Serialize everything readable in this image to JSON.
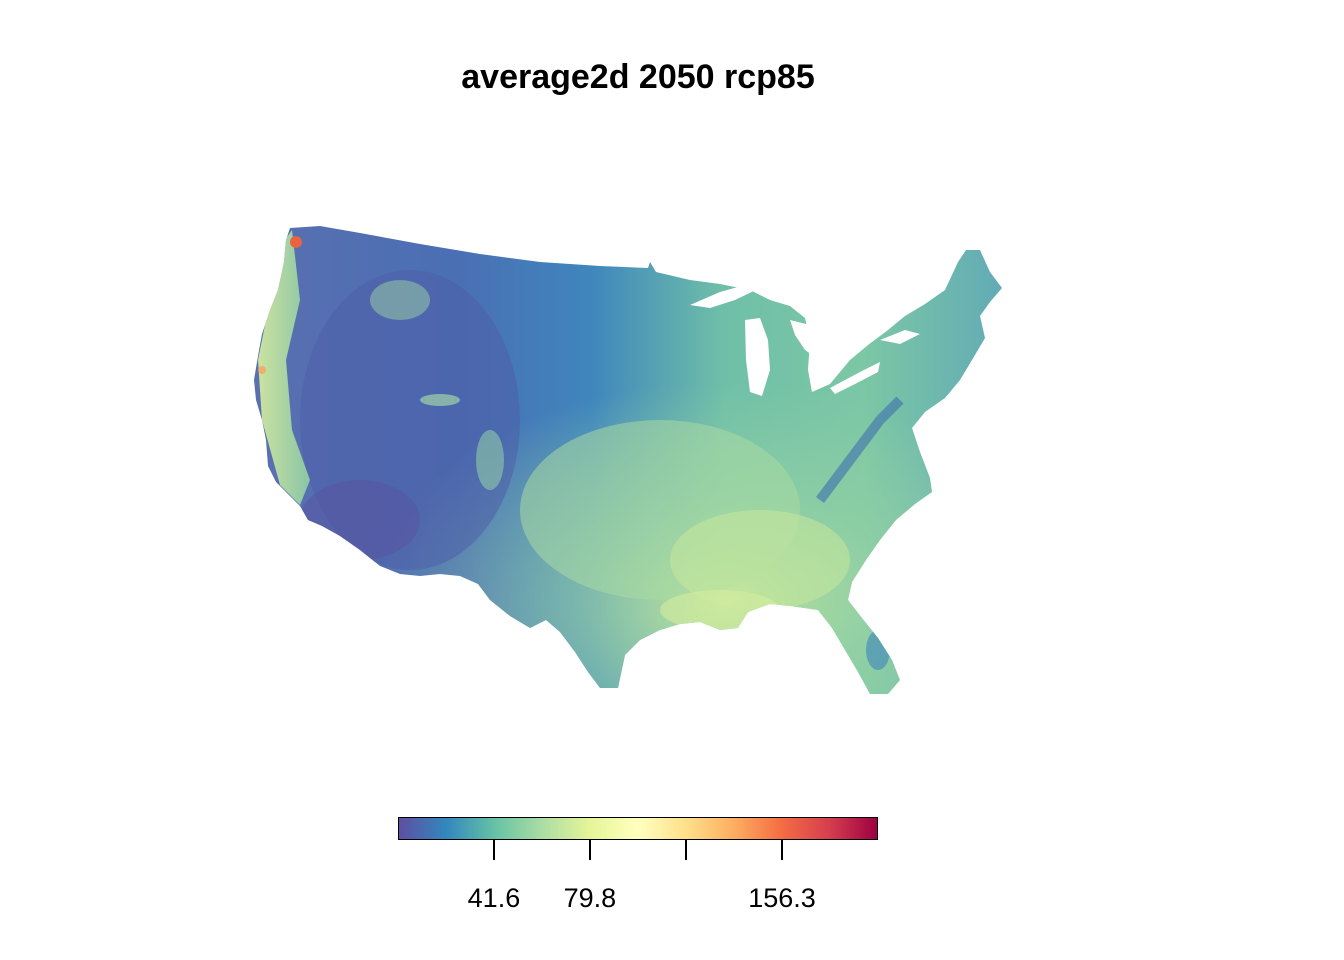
{
  "title": "average2d 2050 rcp85",
  "legend": {
    "colors": [
      "#5e4fa2",
      "#3288bd",
      "#66c2a5",
      "#abdda4",
      "#e6f598",
      "#ffffbf",
      "#fee08b",
      "#fdae61",
      "#f46d43",
      "#d53e4f",
      "#9e0142"
    ],
    "ticks": [
      {
        "value": 41.6,
        "label": "41.6"
      },
      {
        "value": 79.8,
        "label": "79.8"
      },
      {
        "value": 118.0,
        "label": ""
      },
      {
        "value": 156.3,
        "label": "156.3"
      }
    ],
    "min": 3.4,
    "max": 194.5
  },
  "map": {
    "region": "Contiguous United States",
    "shading": "west-mountains-dark, southeast-light"
  }
}
